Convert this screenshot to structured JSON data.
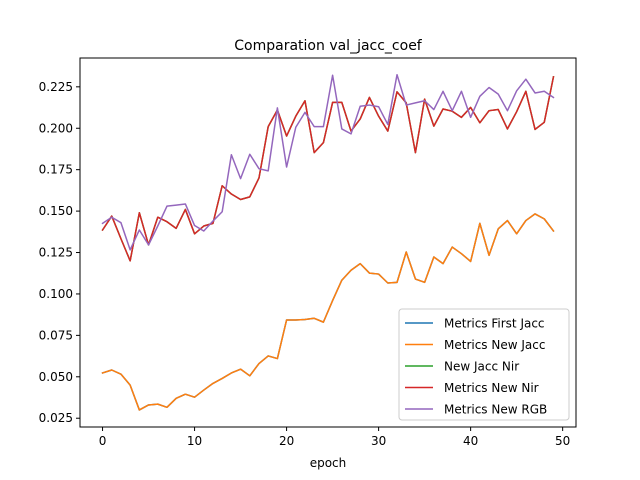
{
  "chart_data": {
    "type": "line",
    "title": "Comparation val_jacc_coef",
    "xlabel": "epoch",
    "ylabel": "",
    "xlim": [
      -2.45,
      51.45
    ],
    "ylim": [
      0.0197,
      0.2424
    ],
    "xticks": [
      0,
      10,
      20,
      30,
      40,
      50
    ],
    "yticks": [
      0.025,
      0.05,
      0.075,
      0.1,
      0.125,
      0.15,
      0.175,
      0.2,
      0.225
    ],
    "ytick_labels": [
      "0.025",
      "0.050",
      "0.075",
      "0.100",
      "0.125",
      "0.150",
      "0.175",
      "0.200",
      "0.225"
    ],
    "legend_position": "lower-right",
    "x": [
      0,
      1,
      2,
      3,
      4,
      5,
      6,
      7,
      8,
      9,
      10,
      11,
      12,
      13,
      14,
      15,
      16,
      17,
      18,
      19,
      20,
      21,
      22,
      23,
      24,
      25,
      26,
      27,
      28,
      29,
      30,
      31,
      32,
      33,
      34,
      35,
      36,
      37,
      38,
      39,
      40,
      41,
      42,
      43,
      44,
      45,
      46,
      47,
      48,
      49
    ],
    "series": [
      {
        "name": "Metrics First Jacc",
        "color": "#1f77b4",
        "values": [
          0.0523,
          0.0541,
          0.0516,
          0.045,
          0.03,
          0.033,
          0.0335,
          0.0316,
          0.037,
          0.0395,
          0.0377,
          0.042,
          0.046,
          0.049,
          0.0523,
          0.0546,
          0.0506,
          0.058,
          0.0626,
          0.061,
          0.0843,
          0.0843,
          0.0846,
          0.0853,
          0.083,
          0.096,
          0.1083,
          0.1143,
          0.1183,
          0.1126,
          0.112,
          0.1066,
          0.107,
          0.1253,
          0.109,
          0.107,
          0.1223,
          0.1183,
          0.1283,
          0.1243,
          0.1196,
          0.1426,
          0.1233,
          0.1393,
          0.1443,
          0.1363,
          0.1443,
          0.1483,
          0.1453,
          0.138
        ]
      },
      {
        "name": "Metrics New Jacc",
        "color": "#ff7f0e",
        "values": [
          0.0523,
          0.0541,
          0.0516,
          0.045,
          0.03,
          0.033,
          0.0335,
          0.0316,
          0.037,
          0.0395,
          0.0377,
          0.042,
          0.046,
          0.049,
          0.0523,
          0.0546,
          0.0506,
          0.058,
          0.0626,
          0.061,
          0.0843,
          0.0843,
          0.0846,
          0.0853,
          0.083,
          0.096,
          0.1083,
          0.1143,
          0.1183,
          0.1126,
          0.112,
          0.1066,
          0.107,
          0.1253,
          0.109,
          0.107,
          0.1223,
          0.1183,
          0.1283,
          0.1243,
          0.1196,
          0.1426,
          0.1233,
          0.1393,
          0.1443,
          0.1363,
          0.1443,
          0.1483,
          0.1453,
          0.138
        ]
      },
      {
        "name": "New Jacc Nir",
        "color": "#2ca02c",
        "values": [
          0.1386,
          0.147,
          0.1333,
          0.12,
          0.149,
          0.1296,
          0.1463,
          0.1436,
          0.1396,
          0.151,
          0.1363,
          0.141,
          0.1426,
          0.1653,
          0.1603,
          0.157,
          0.1586,
          0.17,
          0.201,
          0.211,
          0.1953,
          0.2073,
          0.2166,
          0.1853,
          0.1913,
          0.2156,
          0.2156,
          0.1983,
          0.2056,
          0.2186,
          0.2073,
          0.1983,
          0.222,
          0.2153,
          0.1853,
          0.2176,
          0.2013,
          0.2116,
          0.2103,
          0.2066,
          0.2126,
          0.2033,
          0.2106,
          0.2113,
          0.1996,
          0.21,
          0.2223,
          0.1993,
          0.2036,
          0.231
        ]
      },
      {
        "name": "Metrics New Nir",
        "color": "#d62728",
        "values": [
          0.1386,
          0.147,
          0.1333,
          0.12,
          0.149,
          0.1296,
          0.1463,
          0.1436,
          0.1396,
          0.151,
          0.1363,
          0.141,
          0.1426,
          0.1653,
          0.1603,
          0.157,
          0.1586,
          0.17,
          0.201,
          0.211,
          0.1953,
          0.2073,
          0.2166,
          0.1853,
          0.1913,
          0.2156,
          0.2156,
          0.1983,
          0.2056,
          0.2186,
          0.2073,
          0.1983,
          0.222,
          0.2153,
          0.1853,
          0.2176,
          0.2013,
          0.2116,
          0.2103,
          0.2066,
          0.2126,
          0.2033,
          0.2106,
          0.2113,
          0.1996,
          0.21,
          0.2223,
          0.1993,
          0.2036,
          0.231
        ]
      },
      {
        "name": "Metrics New RGB",
        "color": "#9467bd",
        "values": [
          0.1426,
          0.1463,
          0.143,
          0.1266,
          0.1386,
          0.1296,
          0.141,
          0.153,
          0.1536,
          0.1543,
          0.1413,
          0.138,
          0.144,
          0.1496,
          0.184,
          0.1696,
          0.1843,
          0.1756,
          0.1743,
          0.2123,
          0.1766,
          0.2006,
          0.2096,
          0.201,
          0.201,
          0.232,
          0.1996,
          0.1966,
          0.2133,
          0.214,
          0.213,
          0.2023,
          0.2323,
          0.214,
          0.2153,
          0.2166,
          0.2113,
          0.2223,
          0.2106,
          0.2223,
          0.2066,
          0.2193,
          0.2246,
          0.2206,
          0.2106,
          0.2226,
          0.2296,
          0.2213,
          0.2223,
          0.2186
        ]
      }
    ]
  }
}
